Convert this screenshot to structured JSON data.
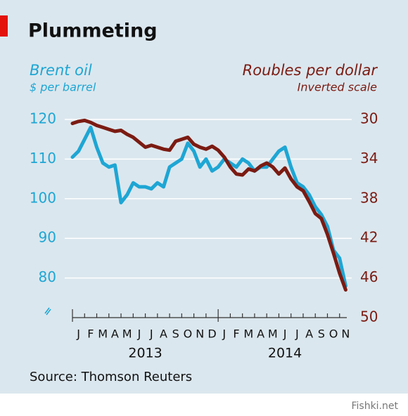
{
  "chart_data": {
    "type": "line",
    "title": "Plummeting",
    "y_label": "Brent oil",
    "y_unit": "$ per barrel",
    "y2_label": "Roubles per dollar",
    "y2_unit": "Inverted scale",
    "source": "Source: Thomson Reuters",
    "watermark": "Fishki.net",
    "categories": [
      "J",
      "F",
      "M",
      "A",
      "M",
      "J",
      "J",
      "A",
      "S",
      "O",
      "N",
      "D",
      "J",
      "F",
      "M",
      "A",
      "M",
      "J",
      "J",
      "A",
      "S",
      "O",
      "N"
    ],
    "years": [
      "2013",
      "2014"
    ],
    "xlim": [
      0,
      23
    ],
    "ylim": [
      70,
      120
    ],
    "yticks": [
      80,
      90,
      100,
      110,
      120
    ],
    "y2lim": [
      50,
      30
    ],
    "y2ticks": [
      30,
      34,
      38,
      42,
      46,
      50
    ],
    "grid": true,
    "x": [
      0,
      0.5,
      1,
      1.5,
      2,
      2.5,
      3,
      3.5,
      4,
      4.5,
      5,
      5.5,
      6,
      6.5,
      7,
      7.5,
      8,
      8.5,
      9,
      9.5,
      10,
      10.5,
      11,
      11.5,
      12,
      12.5,
      13,
      13.5,
      14,
      14.5,
      15,
      15.5,
      16,
      16.5,
      17,
      17.5,
      18,
      18.5,
      19,
      19.5,
      20,
      20.5,
      21,
      21.5,
      22,
      22.5
    ],
    "series": [
      {
        "name": "Brent oil",
        "color": "#1ea6d4",
        "axis": "y",
        "values": [
          110.5,
          112,
          115,
          118,
          113,
          109,
          108,
          108.5,
          99,
          101,
          104,
          103,
          103,
          102.5,
          104,
          103,
          108,
          109,
          110,
          114,
          112,
          108,
          110,
          107,
          108,
          110,
          109,
          108,
          110,
          109,
          107,
          108,
          108,
          110,
          112,
          113,
          108,
          104,
          103,
          101,
          98,
          96,
          93,
          87,
          85,
          78
        ]
      },
      {
        "name": "Roubles per dollar",
        "color": "#7b1b12",
        "axis": "y2",
        "values": [
          30.4,
          30.2,
          30.1,
          30.3,
          30.6,
          30.8,
          31,
          31.2,
          31.1,
          31.5,
          31.8,
          32.3,
          32.8,
          32.6,
          32.8,
          33,
          33.1,
          32.2,
          32,
          31.8,
          32.5,
          32.8,
          33,
          32.7,
          33.1,
          33.8,
          34.8,
          35.5,
          35.6,
          35,
          35.2,
          34.7,
          34.4,
          34.8,
          35.5,
          34.9,
          36,
          36.8,
          37.2,
          38.3,
          39.5,
          40,
          41.6,
          43.5,
          45.5,
          47.2
        ]
      }
    ]
  }
}
